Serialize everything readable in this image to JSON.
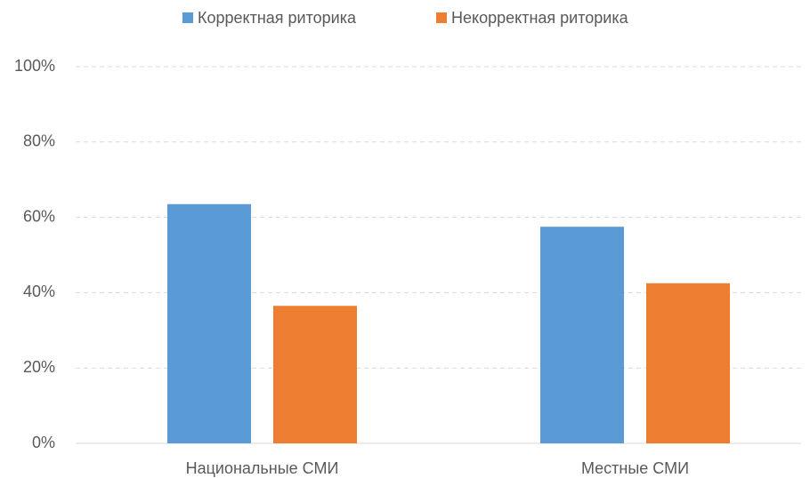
{
  "chart_data": {
    "type": "bar",
    "categories": [
      "Национальные СМИ",
      "Местные СМИ"
    ],
    "series": [
      {
        "name": "Корректная риторика",
        "color": "#5b9bd5",
        "values": [
          63.5,
          57.5
        ]
      },
      {
        "name": "Некорректная риторика",
        "color": "#ed7d31",
        "values": [
          36.5,
          42.5
        ]
      }
    ],
    "ylim": [
      0,
      100
    ],
    "yticks": [
      {
        "value": 0,
        "label": "0%"
      },
      {
        "value": 20,
        "label": "20%"
      },
      {
        "value": 40,
        "label": "40%"
      },
      {
        "value": 60,
        "label": "60%"
      },
      {
        "value": 80,
        "label": "80%"
      },
      {
        "value": 100,
        "label": "100%"
      }
    ],
    "grid": true,
    "legend": "top"
  }
}
